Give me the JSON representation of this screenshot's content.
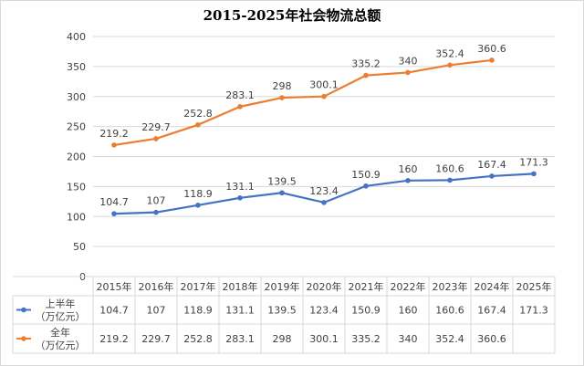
{
  "chart_data": {
    "type": "line",
    "title": "2015-2025年社会物流总额",
    "categories": [
      "2015年",
      "2016年",
      "2017年",
      "2018年",
      "2019年",
      "2020年",
      "2021年",
      "2022年",
      "2023年",
      "2024年",
      "2025年"
    ],
    "ylim": [
      0,
      400
    ],
    "y_ticks": [
      0,
      50,
      100,
      150,
      200,
      250,
      300,
      350,
      400
    ],
    "grid": true,
    "legend_placement": "data-table-left",
    "series": [
      {
        "name": "上半年（万亿元）",
        "label_line1": "上半年",
        "label_line2": "（万亿元）",
        "color": "#4472c4",
        "values": [
          104.7,
          107,
          118.9,
          131.1,
          139.5,
          123.4,
          150.9,
          160,
          160.6,
          167.4,
          171.3
        ]
      },
      {
        "name": "全年（万亿元）",
        "label_line1": "全年",
        "label_line2": "（万亿元）",
        "color": "#ed7d31",
        "values": [
          219.2,
          229.7,
          252.8,
          283.1,
          298,
          300.1,
          335.2,
          340,
          352.4,
          360.6,
          null
        ]
      }
    ]
  }
}
